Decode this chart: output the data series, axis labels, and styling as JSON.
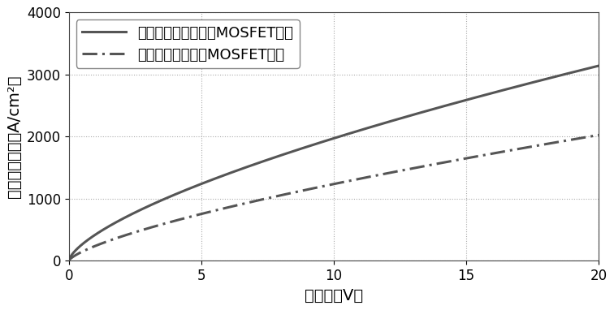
{
  "title": "",
  "xlabel": "漏电压（V）",
  "ylabel": "漏极电流密度（A/cm²）",
  "xlim": [
    0,
    20
  ],
  "ylim": [
    0,
    4000
  ],
  "xticks": [
    0,
    5,
    10,
    15,
    20
  ],
  "yticks": [
    0,
    1000,
    2000,
    3000,
    4000
  ],
  "line1_label": "本申请双沟槽碳化确MOSFET结构",
  "line2_label": "现有双沟槽碳化确MOSFET结构",
  "line1_style": "-",
  "line2_style": "-.",
  "line_color": "#555555",
  "line_width": 2.2,
  "grid_color": "#aaaaaa",
  "grid_style": ":",
  "background_color": "#ffffff",
  "x_end": 20,
  "a1": 420.8,
  "b1": 0.671,
  "a2": 240.0,
  "b2": 0.712,
  "font_size": 14,
  "tick_font_size": 12,
  "legend_font_size": 13
}
